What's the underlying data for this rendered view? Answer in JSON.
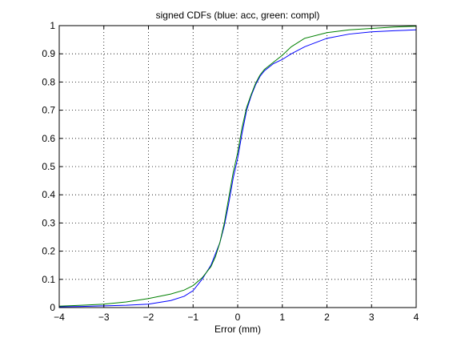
{
  "chart_data": {
    "type": "line",
    "title": "signed CDFs (blue: acc, green: compl)",
    "xlabel": "Error (mm)",
    "ylabel": "",
    "xlim": [
      -4,
      4
    ],
    "ylim": [
      0,
      1
    ],
    "xticks": [
      -4,
      -3,
      -2,
      -1,
      0,
      1,
      2,
      3,
      4
    ],
    "yticks": [
      0,
      0.1,
      0.2,
      0.3,
      0.4,
      0.5,
      0.6,
      0.7,
      0.8,
      0.9,
      1
    ],
    "xtick_labels": [
      "−4",
      "−3",
      "−2",
      "−1",
      "0",
      "1",
      "2",
      "3",
      "4"
    ],
    "ytick_labels": [
      "0",
      "0.1",
      "0.2",
      "0.3",
      "0.4",
      "0.5",
      "0.6",
      "0.7",
      "0.8",
      "0.9",
      "1"
    ],
    "grid": true,
    "series": [
      {
        "color": "#0000ff",
        "x": [
          -4,
          -3.5,
          -3,
          -2.5,
          -2,
          -1.5,
          -1.2,
          -1,
          -0.8,
          -0.6,
          -0.5,
          -0.4,
          -0.3,
          -0.2,
          -0.1,
          0,
          0.1,
          0.2,
          0.3,
          0.4,
          0.5,
          0.6,
          0.8,
          1,
          1.2,
          1.5,
          2,
          2.5,
          3,
          3.5,
          4
        ],
        "y": [
          0.003,
          0.004,
          0.006,
          0.008,
          0.012,
          0.025,
          0.04,
          0.06,
          0.1,
          0.15,
          0.19,
          0.23,
          0.29,
          0.37,
          0.46,
          0.53,
          0.62,
          0.7,
          0.75,
          0.79,
          0.82,
          0.84,
          0.865,
          0.88,
          0.9,
          0.925,
          0.955,
          0.97,
          0.978,
          0.982,
          0.985
        ]
      },
      {
        "color": "#008000",
        "x": [
          -4,
          -3.5,
          -3,
          -2.5,
          -2,
          -1.5,
          -1.2,
          -1,
          -0.8,
          -0.6,
          -0.5,
          -0.4,
          -0.3,
          -0.2,
          -0.1,
          0,
          0.1,
          0.2,
          0.3,
          0.4,
          0.5,
          0.6,
          0.8,
          1,
          1.2,
          1.5,
          2,
          2.5,
          3,
          3.5,
          4
        ],
        "y": [
          0.005,
          0.008,
          0.012,
          0.02,
          0.032,
          0.048,
          0.062,
          0.078,
          0.105,
          0.145,
          0.18,
          0.23,
          0.3,
          0.39,
          0.48,
          0.55,
          0.64,
          0.71,
          0.755,
          0.795,
          0.825,
          0.845,
          0.87,
          0.895,
          0.925,
          0.955,
          0.975,
          0.985,
          0.99,
          0.995,
          0.998
        ]
      }
    ]
  }
}
